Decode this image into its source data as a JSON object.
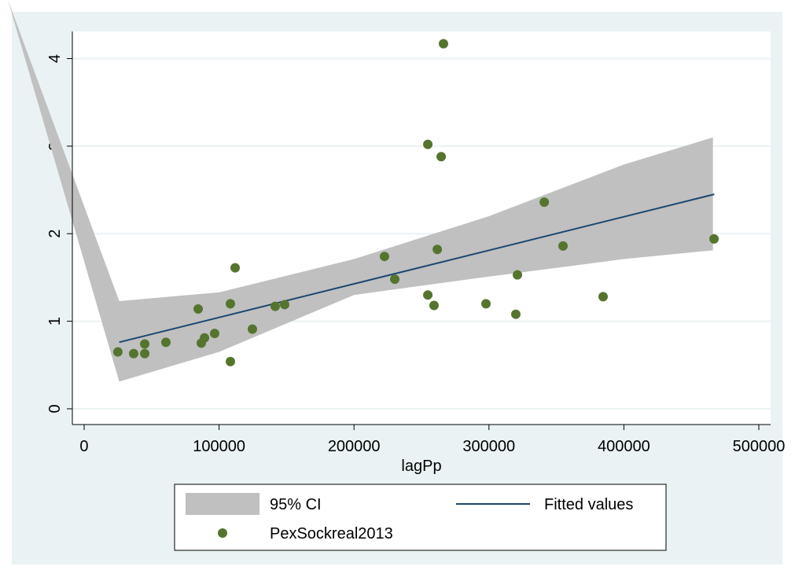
{
  "chart_data": {
    "type": "scatter",
    "x_label": "lagPp",
    "xlim": [
      -8741,
      508741
    ],
    "ylim": [
      -0.18,
      4.31
    ],
    "xticks": [
      0,
      100000,
      200000,
      300000,
      400000,
      500000
    ],
    "yticks": [
      0,
      1,
      2,
      3,
      4
    ],
    "grid": true,
    "legend": "bottom",
    "series": [
      {
        "name": "95% CI",
        "type": "rarea",
        "color": "#c0c0c0",
        "x": [
          -56500,
          26000,
          100000,
          200000,
          300000,
          400000,
          466000
        ],
        "lower": [
          4.67,
          0.31,
          0.65,
          1.3,
          1.51,
          1.71,
          1.81
        ],
        "upper": [
          4.67,
          1.23,
          1.33,
          1.71,
          2.2,
          2.79,
          3.1
        ]
      },
      {
        "name": "Fitted values",
        "type": "line",
        "color": "#1a476f",
        "x": [
          26000,
          467000
        ],
        "values": [
          0.76,
          2.45
        ]
      },
      {
        "name": "PexSockreal2013",
        "type": "scatter",
        "color": "#55752f",
        "x": [
          25000,
          36700,
          44900,
          44900,
          60600,
          84500,
          86800,
          89200,
          96700,
          108400,
          108400,
          111900,
          124700,
          141600,
          148600,
          222600,
          230200,
          254700,
          254700,
          259300,
          261700,
          264600,
          266300,
          297800,
          319900,
          321100,
          341000,
          354900,
          384600,
          466800
        ],
        "values": [
          0.65,
          0.63,
          0.74,
          0.63,
          0.76,
          1.14,
          0.75,
          0.81,
          0.86,
          1.2,
          0.54,
          1.61,
          0.91,
          1.17,
          1.19,
          1.74,
          1.48,
          3.02,
          1.3,
          1.18,
          1.82,
          2.88,
          4.17,
          1.2,
          1.08,
          1.53,
          2.36,
          1.86,
          1.28,
          1.94
        ]
      }
    ]
  }
}
